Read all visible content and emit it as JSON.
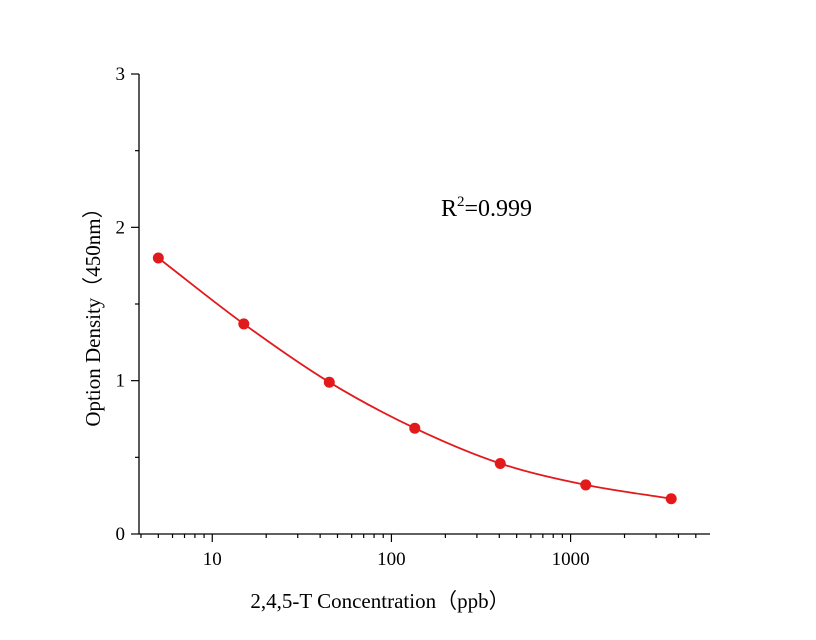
{
  "chart_data": {
    "type": "line",
    "title": "",
    "xlabel": "2,4,5-T  Concentration（ppb）",
    "ylabel": "Option Density（450nm）",
    "x_scale": "log",
    "xlim": [
      3.9,
      6000
    ],
    "ylim": [
      0,
      3
    ],
    "x_ticks": [
      10,
      100,
      1000
    ],
    "x_tick_labels": [
      "10",
      "100",
      "1000"
    ],
    "y_ticks": [
      0,
      1,
      2,
      3
    ],
    "y_tick_labels": [
      "0",
      "1",
      "2",
      "3"
    ],
    "grid": false,
    "legend": "none",
    "color": "#e31a1c",
    "series": [
      {
        "x": [
          5,
          15,
          45,
          135,
          405,
          1215,
          3645
        ],
        "y": [
          1.8,
          1.37,
          0.99,
          0.69,
          0.46,
          0.32,
          0.23
        ]
      }
    ],
    "annotation": {
      "base": "R",
      "superscript": "2",
      "text": "=0.999"
    }
  }
}
